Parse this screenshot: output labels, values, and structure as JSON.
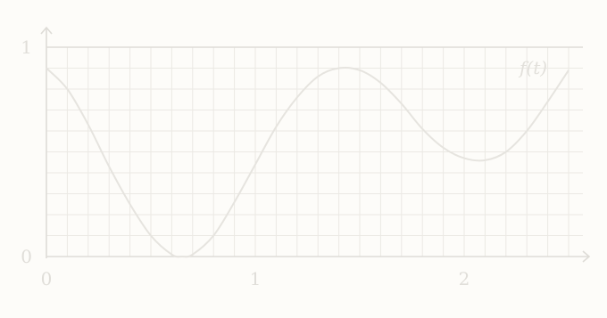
{
  "chart_data": {
    "type": "line",
    "title": "",
    "xlabel": "",
    "ylabel": "",
    "xlim": [
      0,
      2.6
    ],
    "ylim": [
      0,
      1
    ],
    "x_ticks": [
      0,
      1,
      2
    ],
    "x_tick_labels": [
      "0",
      "1",
      "2"
    ],
    "y_ticks": [
      0,
      1
    ],
    "y_tick_labels": [
      "0",
      "1"
    ],
    "grid": true,
    "grid_x_step": 0.1,
    "grid_y_step": 0.1,
    "series": [
      {
        "name": "f(t)",
        "label_text": "f(t)",
        "color": "#e6e4df",
        "x": [
          0,
          0.1,
          0.2,
          0.3,
          0.4,
          0.5,
          0.6,
          0.65,
          0.7,
          0.8,
          0.9,
          1.0,
          1.1,
          1.2,
          1.3,
          1.4,
          1.5,
          1.6,
          1.7,
          1.8,
          1.9,
          2.0,
          2.1,
          2.2,
          2.3,
          2.4,
          2.5
        ],
        "y": [
          0.9,
          0.8,
          0.63,
          0.43,
          0.25,
          0.1,
          0.01,
          0.0,
          0.01,
          0.1,
          0.26,
          0.44,
          0.62,
          0.76,
          0.86,
          0.9,
          0.89,
          0.83,
          0.73,
          0.61,
          0.52,
          0.47,
          0.46,
          0.5,
          0.6,
          0.74,
          0.89
        ]
      }
    ]
  }
}
